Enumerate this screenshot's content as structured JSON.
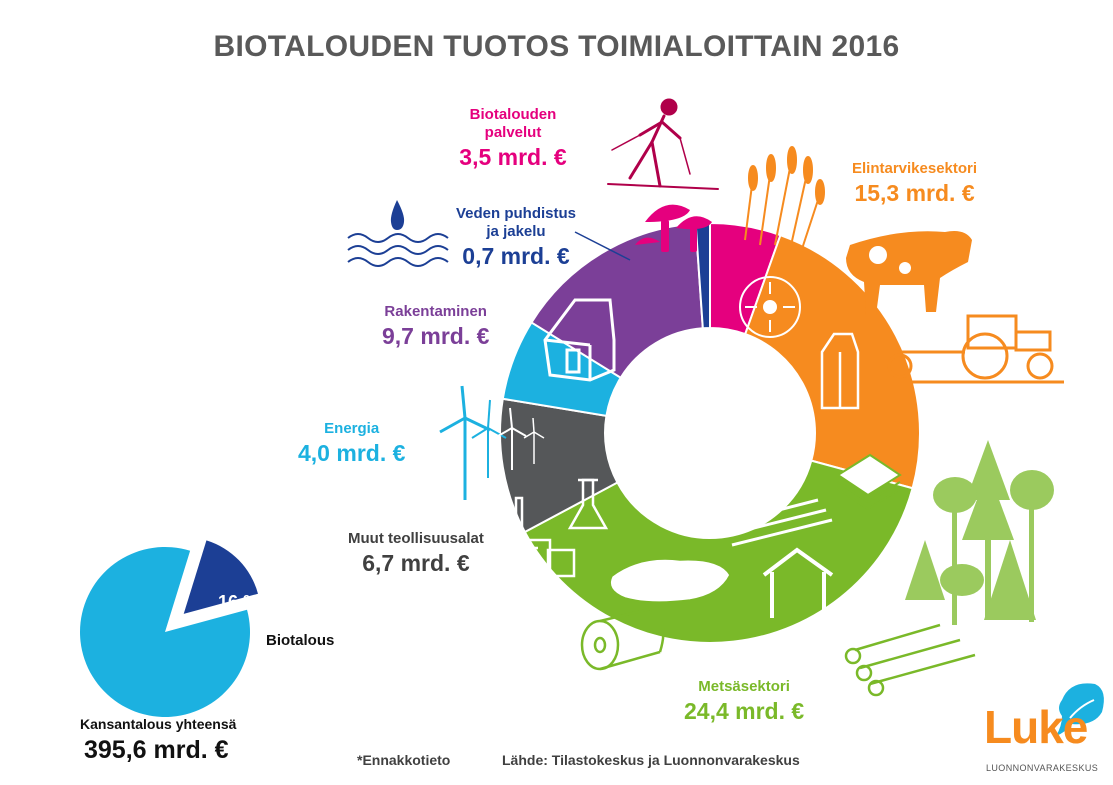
{
  "title": "BIOTALOUDEN TUOTOS TOIMIALOITTAIN 2016",
  "chart_data": [
    {
      "type": "pie",
      "variant": "donut",
      "unit": "mrd. €",
      "slices": [
        {
          "label": "Biotalouden palvelut",
          "value": 3.5,
          "value_text": "3,5 mrd. €",
          "color": "#e5007e"
        },
        {
          "label": "Elintarvikesektori",
          "value": 15.3,
          "value_text": "15,3 mrd. €",
          "color": "#f68b1f"
        },
        {
          "label": "Metsäsektori",
          "value": 24.4,
          "value_text": "24,4 mrd. €",
          "color": "#7ab929"
        },
        {
          "label": "Muut teollisuusalat",
          "value": 6.7,
          "value_text": "6,7 mrd. €",
          "color": "#555759"
        },
        {
          "label": "Energia",
          "value": 4.0,
          "value_text": "4,0 mrd. €",
          "color": "#1cb1e0"
        },
        {
          "label": "Rakentaminen",
          "value": 9.7,
          "value_text": "9,7 mrd. €",
          "color": "#7b3f98"
        },
        {
          "label": "Veden puhdistus ja jakelu",
          "value": 0.7,
          "value_text": "0,7 mrd. €",
          "color": "#1c3f95"
        }
      ]
    },
    {
      "type": "pie",
      "slices": [
        {
          "label": "Biotalous",
          "value": 16,
          "value_text": "16 %",
          "color": "#1c3f95"
        },
        {
          "label": "Kansantalous yhteensä",
          "value": 84,
          "color": "#1cb1e0"
        }
      ],
      "total_label": "Kansantalous yhteensä",
      "total_value": "395,6 mrd. €"
    }
  ],
  "footer": {
    "note": "*Ennakkotieto",
    "source": "Lähde: Tilastokeskus ja Luonnonvarakeskus"
  },
  "logo": {
    "name": "Luke",
    "sub": "LUONNONVARAKESKUS",
    "color": "#f68b1f"
  },
  "icons": [
    "skier-icon",
    "mushroom-icon",
    "wheat-icon",
    "cow-icon",
    "tractor-icon",
    "milk-carton-icon",
    "bread-icon",
    "water-drop-icon",
    "waves-icon",
    "house-icon",
    "wind-turbine-icon",
    "factory-icon",
    "flask-icon",
    "paper-roll-icon",
    "wood-chips-icon",
    "planks-icon",
    "timber-frame-icon",
    "logs-icon",
    "trees-icon",
    "paper-stack-icon"
  ]
}
